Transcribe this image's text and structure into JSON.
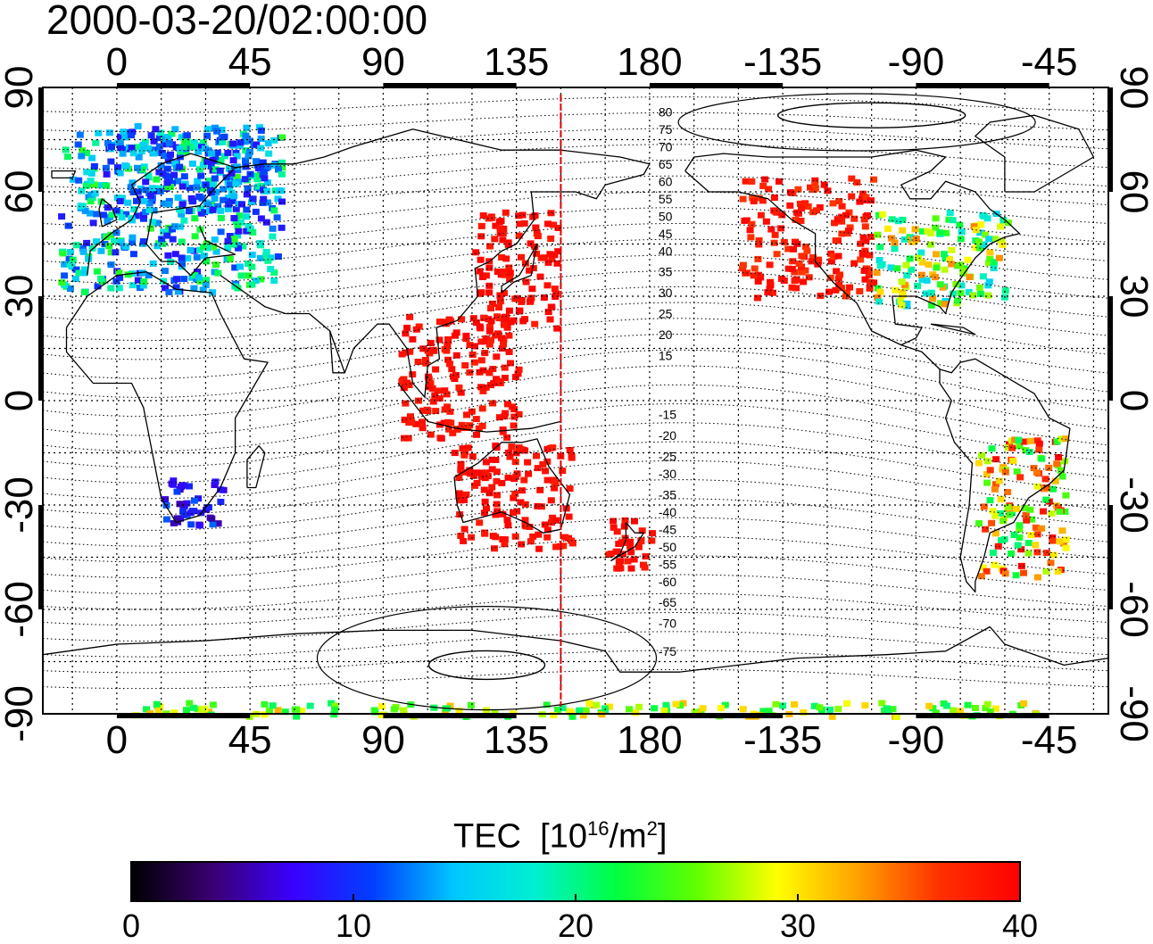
{
  "title": "2000-03-20/02:00:00",
  "map": {
    "lon_range": [
      -25,
      335
    ],
    "lat_range": [
      -90,
      90
    ],
    "x_ticks": [
      {
        "lon": 0,
        "label": "0"
      },
      {
        "lon": 45,
        "label": "45"
      },
      {
        "lon": 90,
        "label": "90"
      },
      {
        "lon": 135,
        "label": "135"
      },
      {
        "lon": 180,
        "label": "180"
      },
      {
        "lon": 225,
        "label": "-135"
      },
      {
        "lon": 270,
        "label": "-90"
      },
      {
        "lon": 315,
        "label": "-45"
      }
    ],
    "y_ticks": [
      {
        "lat": 90,
        "label": "90"
      },
      {
        "lat": 60,
        "label": "60"
      },
      {
        "lat": 30,
        "label": "30"
      },
      {
        "lat": 0,
        "label": "0"
      },
      {
        "lat": -30,
        "label": "-30"
      },
      {
        "lat": -60,
        "label": "-60"
      },
      {
        "lat": -90,
        "label": "-90"
      }
    ],
    "grid": true,
    "grid_spacing_lon": 15,
    "grid_spacing_lat": 15,
    "vertical_marker_lon": 150,
    "vertical_marker_color": "#e00000",
    "contour_labels": [
      {
        "value": "80",
        "lat": 83
      },
      {
        "value": "75",
        "lat": 78
      },
      {
        "value": "70",
        "lat": 73
      },
      {
        "value": "65",
        "lat": 68
      },
      {
        "value": "60",
        "lat": 63
      },
      {
        "value": "55",
        "lat": 58
      },
      {
        "value": "50",
        "lat": 53
      },
      {
        "value": "45",
        "lat": 48
      },
      {
        "value": "40",
        "lat": 43
      },
      {
        "value": "35",
        "lat": 37
      },
      {
        "value": "30",
        "lat": 31
      },
      {
        "value": "25",
        "lat": 25
      },
      {
        "value": "20",
        "lat": 19
      },
      {
        "value": "15",
        "lat": 13
      },
      {
        "value": "-15",
        "lat": -4
      },
      {
        "value": "-20",
        "lat": -10
      },
      {
        "value": "-25",
        "lat": -16
      },
      {
        "value": "-30",
        "lat": -21
      },
      {
        "value": "-35",
        "lat": -27
      },
      {
        "value": "-40",
        "lat": -32
      },
      {
        "value": "-45",
        "lat": -37
      },
      {
        "value": "-50",
        "lat": -42
      },
      {
        "value": "-55",
        "lat": -47
      },
      {
        "value": "-60",
        "lat": -52
      },
      {
        "value": "-65",
        "lat": -58
      },
      {
        "value": "-70",
        "lat": -64
      },
      {
        "value": "-75",
        "lat": -72
      }
    ],
    "regions": [
      {
        "name": "europe",
        "lon": [
          -20,
          55
        ],
        "lat": [
          32,
          78
        ],
        "tec": [
          8,
          24
        ]
      },
      {
        "name": "scandinavia",
        "lon": [
          -5,
          50
        ],
        "lat": [
          55,
          80
        ],
        "tec": [
          8,
          16
        ]
      },
      {
        "name": "east-asia",
        "lon": [
          120,
          148
        ],
        "lat": [
          20,
          55
        ],
        "tec": [
          38,
          40
        ]
      },
      {
        "name": "southeast-asia",
        "lon": [
          95,
          135
        ],
        "lat": [
          -10,
          25
        ],
        "tec": [
          38,
          40
        ]
      },
      {
        "name": "australia",
        "lon": [
          113,
          153
        ],
        "lat": [
          -42,
          -12
        ],
        "tec": [
          38,
          40
        ]
      },
      {
        "name": "new-zealand",
        "lon": [
          165,
          180
        ],
        "lat": [
          -48,
          -33
        ],
        "tec": [
          38,
          40
        ]
      },
      {
        "name": "western-north-america",
        "lon": [
          210,
          255
        ],
        "lat": [
          30,
          65
        ],
        "tec": [
          36,
          40
        ]
      },
      {
        "name": "eastern-north-america",
        "lon": [
          255,
          300
        ],
        "lat": [
          28,
          55
        ],
        "tec": [
          15,
          34
        ]
      },
      {
        "name": "south-america",
        "lon": [
          290,
          320
        ],
        "lat": [
          -50,
          -10
        ],
        "tec": [
          20,
          40
        ]
      },
      {
        "name": "southern-africa",
        "lon": [
          15,
          35
        ],
        "lat": [
          -35,
          -22
        ],
        "tec": [
          5,
          12
        ]
      },
      {
        "name": "antarctic-band",
        "lon": [
          5,
          320
        ],
        "lat": [
          -90,
          -86
        ],
        "tec": [
          20,
          32
        ]
      }
    ]
  },
  "colorbar": {
    "title": "TEC",
    "units_prefix": "[10",
    "units_exp": "16",
    "units_mid": "/m",
    "units_exp2": "2",
    "units_suffix": "]",
    "min": 0,
    "max": 40,
    "ticks": [
      {
        "value": 0,
        "label": "0"
      },
      {
        "value": 10,
        "label": "10"
      },
      {
        "value": 20,
        "label": "20"
      },
      {
        "value": 30,
        "label": "30"
      },
      {
        "value": 40,
        "label": "40"
      }
    ],
    "colors": [
      "#000000",
      "#3a0070",
      "#3a00ff",
      "#0040ff",
      "#00c8ff",
      "#00f0d0",
      "#00ff40",
      "#60ff00",
      "#ffff00",
      "#ffa000",
      "#ff3000",
      "#ff0000"
    ]
  }
}
